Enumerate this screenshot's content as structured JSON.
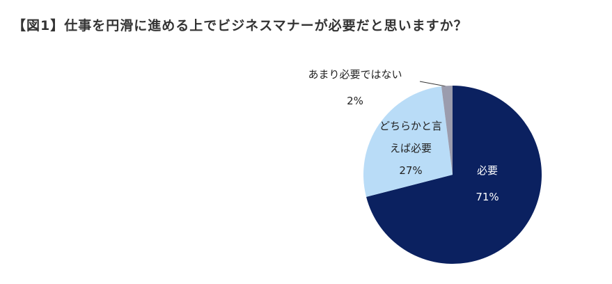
{
  "chart_data": {
    "type": "pie",
    "title": "【図1】仕事を円滑に進める上でビジネスマナーが必要だと思いますか？",
    "categories": [
      "必要",
      "どちらかと言えば必要",
      "あまり必要ではない"
    ],
    "values": [
      71,
      27,
      2
    ],
    "value_labels": [
      "71%",
      "27%",
      "2%"
    ],
    "colors": [
      "#0b2160",
      "#b9dcf7",
      "#9b9cad"
    ]
  }
}
